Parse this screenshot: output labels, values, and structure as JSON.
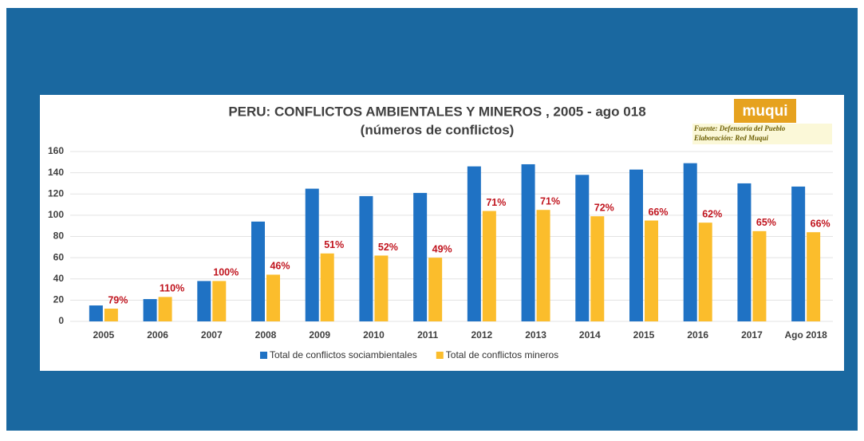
{
  "chart_data": {
    "type": "bar",
    "title": "PERU: CONFLICTOS  AMBIENTALES Y MINEROS , 2005 - ago 018",
    "subtitle": "(números de conflictos)",
    "logo": "muqui",
    "source": "Fuente: Defensoría del Pueblo",
    "credit": "Elaboración: Red Muqui",
    "categories": [
      "2005",
      "2006",
      "2007",
      "2008",
      "2009",
      "2010",
      "2011",
      "2012",
      "2013",
      "2014",
      "2015",
      "2016",
      "2017",
      "Ago 2018"
    ],
    "series": [
      {
        "name": "Total de conflictos sociambientales",
        "color": "#1f72c4",
        "values": [
          15,
          21,
          38,
          94,
          125,
          118,
          121,
          146,
          148,
          138,
          143,
          149,
          130,
          127
        ]
      },
      {
        "name": "Total de conflictos mineros",
        "color": "#fbbd2c",
        "values": [
          12,
          23,
          38,
          44,
          64,
          62,
          60,
          104,
          105,
          99,
          95,
          93,
          85,
          84
        ]
      }
    ],
    "annotations": [
      "79%",
      "110%",
      "100%",
      "46%",
      "51%",
      "52%",
      "49%",
      "71%",
      "71%",
      "72%",
      "66%",
      "62%",
      "65%",
      "66%"
    ],
    "ylim": [
      0,
      160
    ],
    "yticks": [
      0,
      20,
      40,
      60,
      80,
      100,
      120,
      140,
      160
    ],
    "grid": true,
    "legend": "bottom"
  }
}
